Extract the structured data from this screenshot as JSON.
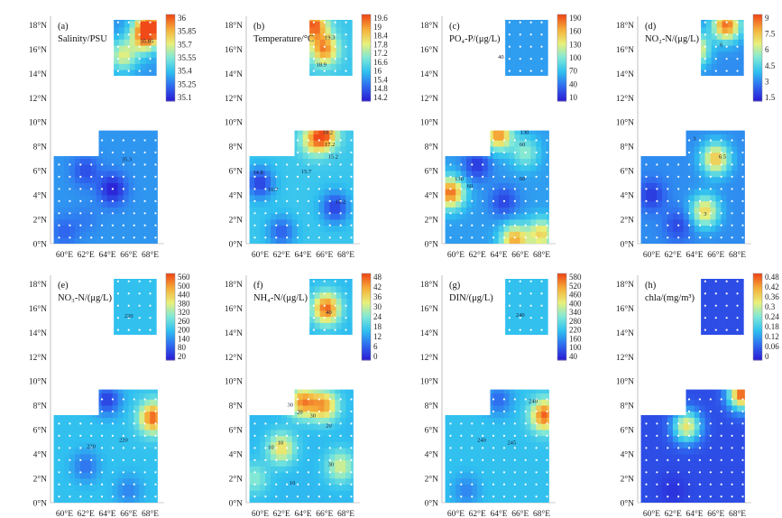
{
  "colors": {
    "sample_point": "#ffffff",
    "frame": "#666666",
    "contour": "#8aa0c8",
    "ramp": [
      "#2a1fd6",
      "#2f6cf0",
      "#2fc0f0",
      "#7fe8d8",
      "#e8f07a",
      "#f5b03a",
      "#f04a18"
    ]
  },
  "shared_axes": {
    "y_ticks": [
      "18°N",
      "16°N",
      "14°N",
      "12°N",
      "10°N",
      "8°N",
      "6°N",
      "4°N",
      "2°N",
      "0°N"
    ],
    "x_ticks": [
      "60°E",
      "62°E",
      "64°E",
      "66°E",
      "68°E"
    ]
  },
  "chart_data": [
    {
      "id": "a",
      "type": "heatmap",
      "label": "(a)",
      "title": "Salinity/PSU",
      "colorbar_ticks": [
        "36",
        "35.85",
        "35.7",
        "35.55",
        "35.4",
        "35.25",
        "35.1"
      ],
      "range": [
        35.1,
        36.1
      ],
      "inset_contour_labels": [
        {
          "text": "35.85",
          "lon": 67.7,
          "lat": 16.5
        }
      ],
      "main_contour_labels": [
        {
          "text": "35.3",
          "lon": 65.8,
          "lat": 6.8
        }
      ],
      "hotspots": [
        {
          "lon": 68,
          "lat": 18,
          "value": 36.0
        },
        {
          "lon": 67.5,
          "lat": 17,
          "value": 35.9
        },
        {
          "lon": 65.5,
          "lat": 15.5,
          "value": 35.75
        },
        {
          "lon": 64.5,
          "lat": 4.5,
          "value": 35.1
        },
        {
          "lon": 62,
          "lat": 6,
          "value": 35.2
        },
        {
          "lon": 62,
          "lat": 2,
          "value": 35.3
        },
        {
          "lon": 60,
          "lat": 1,
          "value": 35.25
        }
      ],
      "base": 35.35
    },
    {
      "id": "b",
      "type": "heatmap",
      "label": "(b)",
      "title": "Temperature/°C",
      "colorbar_ticks": [
        "19.6",
        "19",
        "18.4",
        "17.8",
        "17.2",
        "16.6",
        "16",
        "15.4",
        "14.8",
        "14.2"
      ],
      "range": [
        14.2,
        19.8
      ],
      "inset_contour_labels": [
        {
          "text": "19.3",
          "lon": 66.5,
          "lat": 16.8
        },
        {
          "text": "18.9",
          "lon": 65.7,
          "lat": 14.6
        }
      ],
      "main_contour_labels": [
        {
          "text": "18.2",
          "lon": 66.3,
          "lat": 9.0
        },
        {
          "text": "17.2",
          "lon": 66.5,
          "lat": 8.0
        },
        {
          "text": "15.2",
          "lon": 66.8,
          "lat": 7.0
        },
        {
          "text": "15.7",
          "lon": 64.3,
          "lat": 5.8
        },
        {
          "text": "14.8",
          "lon": 59.8,
          "lat": 5.7
        },
        {
          "text": "16.7",
          "lon": 61.2,
          "lat": 4.3
        },
        {
          "text": "15.2",
          "lon": 67.5,
          "lat": 3.3
        }
      ],
      "hotspots": [
        {
          "lon": 65,
          "lat": 18,
          "value": 19.6
        },
        {
          "lon": 66,
          "lat": 16,
          "value": 19.2
        },
        {
          "lon": 66,
          "lat": 9,
          "value": 19.2
        },
        {
          "lon": 65,
          "lat": 8.5,
          "value": 18.0
        },
        {
          "lon": 60,
          "lat": 5,
          "value": 14.6
        },
        {
          "lon": 67,
          "lat": 3,
          "value": 14.6
        },
        {
          "lon": 62,
          "lat": 1,
          "value": 15.0
        }
      ],
      "base": 16.2
    },
    {
      "id": "c",
      "type": "heatmap",
      "label": "(c)",
      "title": "PO₄-P/(μg/L)",
      "colorbar_ticks": [
        "190",
        "160",
        "130",
        "100",
        "70",
        "40",
        "10"
      ],
      "range": [
        10,
        200
      ],
      "inset_contour_labels": [
        {
          "text": "40",
          "lon": 64.2,
          "lat": 15.2
        }
      ],
      "main_contour_labels": [
        {
          "text": "130",
          "lon": 66.4,
          "lat": 9.0
        },
        {
          "text": "60",
          "lon": 66.2,
          "lat": 8.0
        },
        {
          "text": "60",
          "lon": 61.3,
          "lat": 4.6
        },
        {
          "text": "60",
          "lon": 66.2,
          "lat": 5.2
        },
        {
          "text": "130",
          "lon": 60.3,
          "lat": 5.2
        }
      ],
      "hotspots": [
        {
          "lon": 59.5,
          "lat": 4.2,
          "value": 190
        },
        {
          "lon": 64,
          "lat": 9,
          "value": 180
        },
        {
          "lon": 65.5,
          "lat": 0.3,
          "value": 170
        },
        {
          "lon": 68,
          "lat": 0.8,
          "value": 150
        },
        {
          "lon": 66.5,
          "lat": 7.5,
          "value": 110
        },
        {
          "lon": 62,
          "lat": 6.5,
          "value": 20
        },
        {
          "lon": 64.5,
          "lat": 3.5,
          "value": 25
        }
      ],
      "base": 60
    },
    {
      "id": "d",
      "type": "heatmap",
      "label": "(d)",
      "title": "NO₂-N/(μg/L)",
      "colorbar_ticks": [
        "9",
        "7.5",
        "6",
        "4.5",
        "3",
        "1.5"
      ],
      "range": [
        1.0,
        10.5
      ],
      "inset_contour_labels": [
        {
          "text": "6",
          "lon": 66.5,
          "lat": 16.2
        }
      ],
      "main_contour_labels": [
        {
          "text": "3",
          "lon": 64.0,
          "lat": 8.5
        },
        {
          "text": "6.5",
          "lon": 66.6,
          "lat": 7.0
        },
        {
          "text": "3",
          "lon": 65.0,
          "lat": 2.3
        }
      ],
      "hotspots": [
        {
          "lon": 67,
          "lat": 18,
          "value": 10
        },
        {
          "lon": 64,
          "lat": 16,
          "value": 9
        },
        {
          "lon": 66,
          "lat": 7,
          "value": 8.5
        },
        {
          "lon": 65,
          "lat": 2.7,
          "value": 8
        },
        {
          "lon": 60,
          "lat": 4,
          "value": 1.5
        },
        {
          "lon": 62.5,
          "lat": 1.5,
          "value": 1.8
        }
      ],
      "base": 3.2
    },
    {
      "id": "e",
      "type": "heatmap",
      "label": "(e)",
      "title": "NO₃-N/(μg/L)",
      "colorbar_ticks": [
        "560",
        "500",
        "440",
        "380",
        "320",
        "260",
        "200",
        "140",
        "80",
        "20"
      ],
      "range": [
        20,
        580
      ],
      "inset_contour_labels": [
        {
          "text": "220",
          "lon": 66.0,
          "lat": 15.2
        }
      ],
      "main_contour_labels": [
        {
          "text": "220",
          "lon": 62.5,
          "lat": 4.5
        },
        {
          "text": "220",
          "lon": 65.5,
          "lat": 5.0
        }
      ],
      "hotspots": [
        {
          "lon": 68.3,
          "lat": 7,
          "value": 560
        },
        {
          "lon": 64,
          "lat": 8.5,
          "value": 60
        },
        {
          "lon": 62,
          "lat": 3,
          "value": 120
        },
        {
          "lon": 66,
          "lat": 1,
          "value": 140
        }
      ],
      "base": 210
    },
    {
      "id": "f",
      "type": "heatmap",
      "label": "(f)",
      "title": "NH₄-N/(μg/L)",
      "colorbar_ticks": [
        "48",
        "42",
        "36",
        "30",
        "24",
        "18",
        "12",
        "6",
        "0"
      ],
      "range": [
        0,
        50
      ],
      "inset_contour_labels": [
        {
          "text": "40",
          "lon": 66.4,
          "lat": 15.5
        }
      ],
      "main_contour_labels": [
        {
          "text": "30",
          "lon": 62.8,
          "lat": 7.9
        },
        {
          "text": "20",
          "lon": 63.7,
          "lat": 7.3
        },
        {
          "text": "30",
          "lon": 64.9,
          "lat": 7.0
        },
        {
          "text": "20",
          "lon": 66.4,
          "lat": 6.2
        },
        {
          "text": "10",
          "lon": 61.9,
          "lat": 4.8
        },
        {
          "text": "10",
          "lon": 61.0,
          "lat": 4.4
        },
        {
          "text": "30",
          "lon": 66.6,
          "lat": 3.0
        },
        {
          "text": "10",
          "lon": 63.0,
          "lat": 1.5
        }
      ],
      "hotspots": [
        {
          "lon": 66.2,
          "lat": 16,
          "value": 48
        },
        {
          "lon": 64,
          "lat": 8.3,
          "value": 44
        },
        {
          "lon": 66,
          "lat": 8,
          "value": 42
        },
        {
          "lon": 62,
          "lat": 4.5,
          "value": 36
        },
        {
          "lon": 67.5,
          "lat": 3,
          "value": 32
        },
        {
          "lon": 59.5,
          "lat": 2,
          "value": 26
        }
      ],
      "base": 16
    },
    {
      "id": "g",
      "type": "heatmap",
      "label": "(g)",
      "title": "DIN/(μg/L)",
      "colorbar_ticks": [
        "580",
        "520",
        "460",
        "400",
        "340",
        "280",
        "220",
        "160",
        "100",
        "40"
      ],
      "range": [
        40,
        600
      ],
      "inset_contour_labels": [
        {
          "text": "240",
          "lon": 66.0,
          "lat": 15.3
        }
      ],
      "main_contour_labels": [
        {
          "text": "240",
          "lon": 62.4,
          "lat": 5.0
        },
        {
          "text": "245",
          "lon": 65.2,
          "lat": 4.8
        },
        {
          "text": "240",
          "lon": 67.2,
          "lat": 8.2
        }
      ],
      "hotspots": [
        {
          "lon": 68.3,
          "lat": 7.2,
          "value": 580
        },
        {
          "lon": 64,
          "lat": 8.5,
          "value": 130
        },
        {
          "lon": 61,
          "lat": 1,
          "value": 160
        }
      ],
      "base": 230
    },
    {
      "id": "h",
      "type": "heatmap",
      "label": "(h)",
      "title": "chla/(mg/m³)",
      "colorbar_ticks": [
        "0.48",
        "0.42",
        "0.36",
        "0.3",
        "0.24",
        "0.18",
        "0.12",
        "0.06",
        "0"
      ],
      "range": [
        0,
        0.5
      ],
      "inset_contour_labels": [],
      "main_contour_labels": [],
      "hotspots": [
        {
          "lon": 68.5,
          "lat": 9,
          "value": 0.5
        },
        {
          "lon": 63.3,
          "lat": 6.3,
          "value": 0.35
        },
        {
          "lon": 62,
          "lat": 1,
          "value": 0.02
        }
      ],
      "base": 0.05
    }
  ]
}
